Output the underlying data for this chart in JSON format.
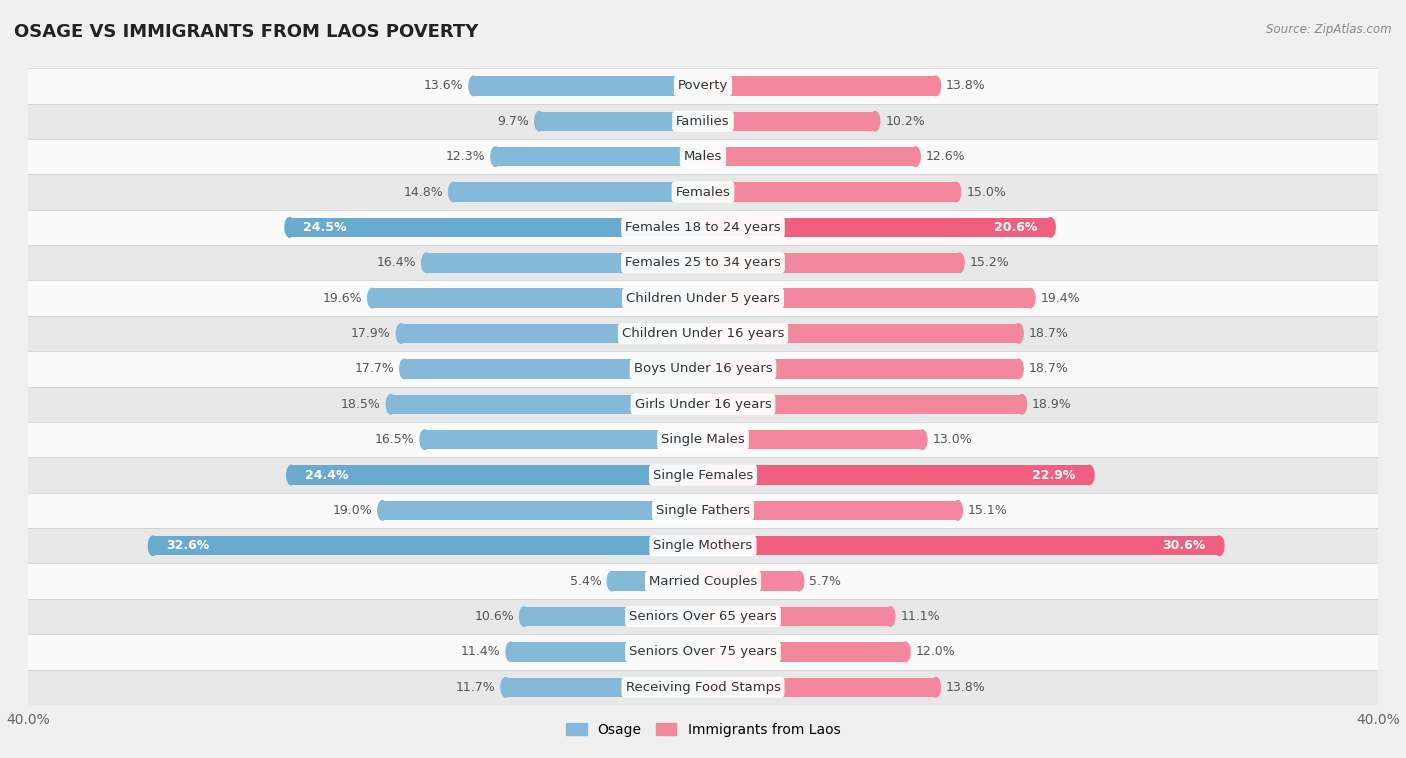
{
  "title": "OSAGE VS IMMIGRANTS FROM LAOS POVERTY",
  "source": "Source: ZipAtlas.com",
  "categories": [
    "Poverty",
    "Families",
    "Males",
    "Females",
    "Females 18 to 24 years",
    "Females 25 to 34 years",
    "Children Under 5 years",
    "Children Under 16 years",
    "Boys Under 16 years",
    "Girls Under 16 years",
    "Single Males",
    "Single Females",
    "Single Fathers",
    "Single Mothers",
    "Married Couples",
    "Seniors Over 65 years",
    "Seniors Over 75 years",
    "Receiving Food Stamps"
  ],
  "osage_values": [
    13.6,
    9.7,
    12.3,
    14.8,
    24.5,
    16.4,
    19.6,
    17.9,
    17.7,
    18.5,
    16.5,
    24.4,
    19.0,
    32.6,
    5.4,
    10.6,
    11.4,
    11.7
  ],
  "laos_values": [
    13.8,
    10.2,
    12.6,
    15.0,
    20.6,
    15.2,
    19.4,
    18.7,
    18.7,
    18.9,
    13.0,
    22.9,
    15.1,
    30.6,
    5.7,
    11.1,
    12.0,
    13.8
  ],
  "osage_color": "#85b9d9",
  "laos_color": "#f2879e",
  "osage_highlight_color": "#6aaace",
  "laos_highlight_color": "#ef6080",
  "background_color": "#f0f0f0",
  "row_color_light": "#fafafa",
  "row_color_dark": "#e8e8e8",
  "axis_limit": 40.0,
  "bar_height": 0.55,
  "label_fontsize": 9.0,
  "category_fontsize": 9.5,
  "title_fontsize": 13,
  "legend_labels": [
    "Osage",
    "Immigrants from Laos"
  ],
  "highlight_indices": [
    4,
    11,
    13
  ]
}
